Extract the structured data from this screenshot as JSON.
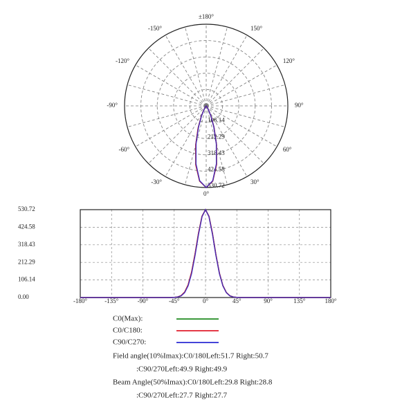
{
  "chart_data": [
    {
      "type": "polar",
      "angle_ticks": [
        {
          "value": 180,
          "label": "±180°"
        },
        {
          "value": -150,
          "label": "-150°"
        },
        {
          "value": 150,
          "label": "150°"
        },
        {
          "value": -120,
          "label": "-120°"
        },
        {
          "value": 120,
          "label": "120°"
        },
        {
          "value": -90,
          "label": "-90°"
        },
        {
          "value": 90,
          "label": "90°"
        },
        {
          "value": -60,
          "label": "-60°"
        },
        {
          "value": 60,
          "label": "60°"
        },
        {
          "value": -30,
          "label": "-30°"
        },
        {
          "value": 30,
          "label": "30°"
        },
        {
          "value": 0,
          "label": "0°"
        }
      ],
      "rlim": [
        0,
        530.72
      ],
      "rticks": [
        106.14,
        212.29,
        318.43,
        424.58,
        530.72
      ],
      "grid": true
    },
    {
      "type": "line",
      "x": [
        -180,
        -90,
        -60,
        -50,
        -45,
        -40,
        -35,
        -30,
        -25,
        -20,
        -15,
        -10,
        -5,
        0,
        5,
        10,
        15,
        20,
        25,
        30,
        35,
        40,
        45,
        50,
        60,
        90,
        180
      ],
      "series": [
        {
          "name": "C0(Max):",
          "color": "#1f8a1f",
          "values": [
            0,
            0,
            0,
            0.2,
            1.0,
            3.6,
            11.8,
            32.5,
            76.1,
            153.2,
            264.0,
            389.5,
            491.0,
            530.72,
            490.4,
            387.4,
            258.0,
            147.5,
            72.0,
            30.1,
            10.6,
            3.2,
            0.9,
            0.2,
            0,
            0,
            0
          ]
        },
        {
          "name": "C0/C180:",
          "color": "#e01c2c",
          "values": [
            0,
            0,
            0,
            0.2,
            1.0,
            3.6,
            11.8,
            32.5,
            76.1,
            153.2,
            264.0,
            389.5,
            491.0,
            530.72,
            490.4,
            387.4,
            258.0,
            147.5,
            72.0,
            30.1,
            10.6,
            3.2,
            0.9,
            0.2,
            0,
            0,
            0
          ]
        },
        {
          "name": "C90/C270:",
          "color": "#2a2ad2",
          "values": [
            0,
            0,
            0,
            0.1,
            0.8,
            3.0,
            10.0,
            29.0,
            70.0,
            144.0,
            254.0,
            382.0,
            488.0,
            530.72,
            488.0,
            382.0,
            254.0,
            144.0,
            70.0,
            29.0,
            10.0,
            3.0,
            0.8,
            0.1,
            0,
            0,
            0
          ]
        }
      ],
      "xlim": [
        -180,
        180
      ],
      "xticks": [
        {
          "value": -180,
          "label": "-180°"
        },
        {
          "value": -135,
          "label": "-135°"
        },
        {
          "value": -90,
          "label": "-90°"
        },
        {
          "value": -45,
          "label": "-45°"
        },
        {
          "value": 0,
          "label": "0°"
        },
        {
          "value": 45,
          "label": "45°"
        },
        {
          "value": 90,
          "label": "90°"
        },
        {
          "value": 135,
          "label": "135°"
        },
        {
          "value": 180,
          "label": "180°"
        }
      ],
      "ylim": [
        0,
        530.72
      ],
      "yticks": [
        {
          "value": 0,
          "label": "0.00"
        },
        106.14,
        212.29,
        318.43,
        424.58,
        530.72
      ],
      "grid": true,
      "notes": [
        "Field angle(10%Imax):C0/180Left:51.7 Right:50.7",
        ":C90/270Left:49.9 Right:49.9",
        "Beam Angle(50%Imax):C0/180Left:29.8 Right:28.8",
        ":C90/270Left:27.7 Right:27.7"
      ]
    }
  ]
}
